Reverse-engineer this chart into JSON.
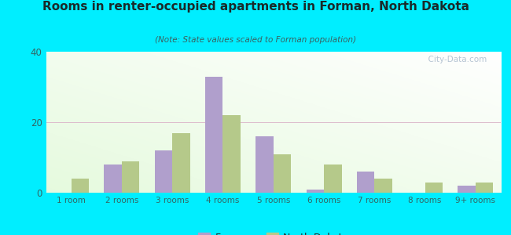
{
  "title": "Rooms in renter-occupied apartments in Forman, North Dakota",
  "subtitle": "(Note: State values scaled to Forman population)",
  "categories": [
    "1 room",
    "2 rooms",
    "3 rooms",
    "4 rooms",
    "5 rooms",
    "6 rooms",
    "7 rooms",
    "8 rooms",
    "9+ rooms"
  ],
  "forman_values": [
    0,
    8,
    12,
    33,
    16,
    1,
    6,
    0,
    2
  ],
  "nd_values": [
    4,
    9,
    17,
    22,
    11,
    8,
    4,
    3,
    3
  ],
  "forman_color": "#b09fcc",
  "nd_color": "#b5c98a",
  "background_outer": "#00eeff",
  "ylim": [
    0,
    40
  ],
  "yticks": [
    0,
    20,
    40
  ],
  "bar_width": 0.35,
  "legend_forman": "Forman",
  "legend_nd": "North Dakota",
  "watermark": "  City-Data.com",
  "title_color": "#1a2a2a",
  "subtitle_color": "#3a6060",
  "tick_color": "#336666"
}
